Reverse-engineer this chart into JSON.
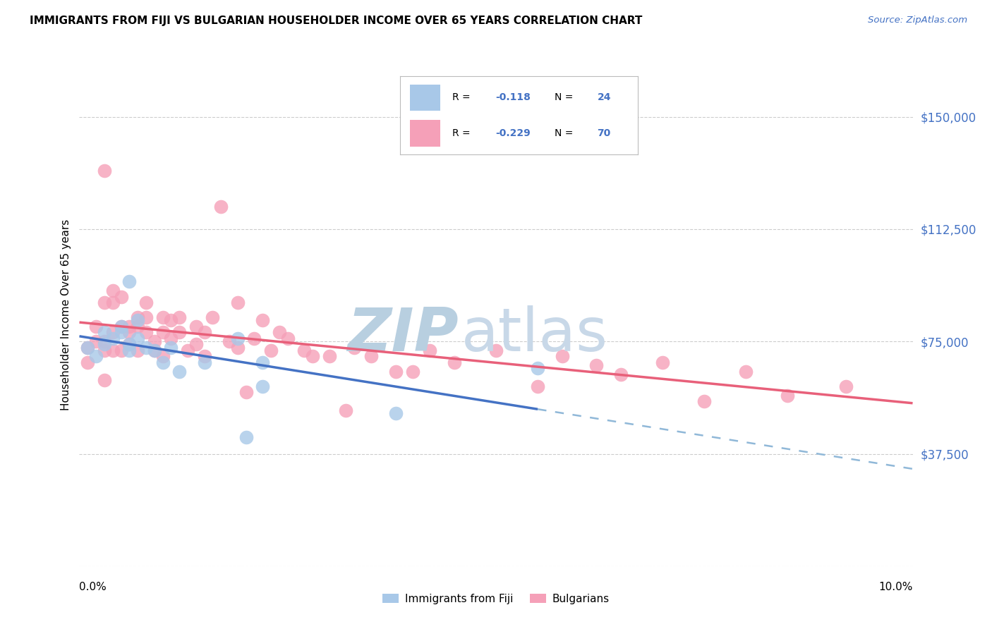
{
  "title": "IMMIGRANTS FROM FIJI VS BULGARIAN HOUSEHOLDER INCOME OVER 65 YEARS CORRELATION CHART",
  "source": "Source: ZipAtlas.com",
  "ylabel": "Householder Income Over 65 years",
  "legend_label1": "Immigrants from Fiji",
  "legend_label2": "Bulgarians",
  "fiji_R": "-0.118",
  "fiji_N": "24",
  "bulg_R": "-0.229",
  "bulg_N": "70",
  "yticks": [
    0,
    37500,
    75000,
    112500,
    150000
  ],
  "ytick_labels": [
    "",
    "$37,500",
    "$75,000",
    "$112,500",
    "$150,000"
  ],
  "xlim": [
    0.0,
    0.1
  ],
  "ylim": [
    0,
    168000
  ],
  "fiji_color": "#a8c8e8",
  "bulg_color": "#f5a0b8",
  "fiji_line_color": "#4472c4",
  "bulg_line_color": "#e8607a",
  "dashed_line_color": "#90b8d8",
  "grid_color": "#cccccc",
  "watermark_zip_color": "#b8cfe0",
  "watermark_atlas_color": "#c8d8e8",
  "fiji_points_x": [
    0.001,
    0.002,
    0.003,
    0.003,
    0.004,
    0.005,
    0.005,
    0.006,
    0.006,
    0.006,
    0.007,
    0.007,
    0.008,
    0.009,
    0.01,
    0.011,
    0.012,
    0.015,
    0.019,
    0.02,
    0.022,
    0.022,
    0.038,
    0.055
  ],
  "fiji_points_y": [
    73000,
    70000,
    74000,
    78000,
    76000,
    80000,
    78000,
    95000,
    74000,
    72000,
    82000,
    76000,
    73000,
    72000,
    68000,
    73000,
    65000,
    68000,
    76000,
    43000,
    68000,
    60000,
    51000,
    66000
  ],
  "bulg_points_x": [
    0.001,
    0.001,
    0.002,
    0.002,
    0.003,
    0.003,
    0.003,
    0.003,
    0.003,
    0.004,
    0.004,
    0.004,
    0.004,
    0.005,
    0.005,
    0.005,
    0.006,
    0.006,
    0.006,
    0.007,
    0.007,
    0.007,
    0.008,
    0.008,
    0.008,
    0.009,
    0.009,
    0.01,
    0.01,
    0.01,
    0.011,
    0.011,
    0.012,
    0.012,
    0.013,
    0.014,
    0.014,
    0.015,
    0.015,
    0.016,
    0.017,
    0.018,
    0.019,
    0.019,
    0.02,
    0.021,
    0.022,
    0.023,
    0.024,
    0.025,
    0.027,
    0.028,
    0.03,
    0.032,
    0.033,
    0.035,
    0.038,
    0.04,
    0.042,
    0.045,
    0.05,
    0.055,
    0.058,
    0.062,
    0.065,
    0.07,
    0.075,
    0.08,
    0.085,
    0.092
  ],
  "bulg_points_y": [
    73000,
    68000,
    80000,
    75000,
    132000,
    88000,
    75000,
    72000,
    62000,
    92000,
    88000,
    78000,
    72000,
    90000,
    80000,
    72000,
    80000,
    78000,
    74000,
    83000,
    80000,
    72000,
    88000,
    83000,
    78000,
    75000,
    72000,
    83000,
    78000,
    70000,
    82000,
    76000,
    83000,
    78000,
    72000,
    80000,
    74000,
    78000,
    70000,
    83000,
    120000,
    75000,
    88000,
    73000,
    58000,
    76000,
    82000,
    72000,
    78000,
    76000,
    72000,
    70000,
    70000,
    52000,
    73000,
    70000,
    65000,
    65000,
    72000,
    68000,
    72000,
    60000,
    70000,
    67000,
    64000,
    68000,
    55000,
    65000,
    57000,
    60000
  ]
}
